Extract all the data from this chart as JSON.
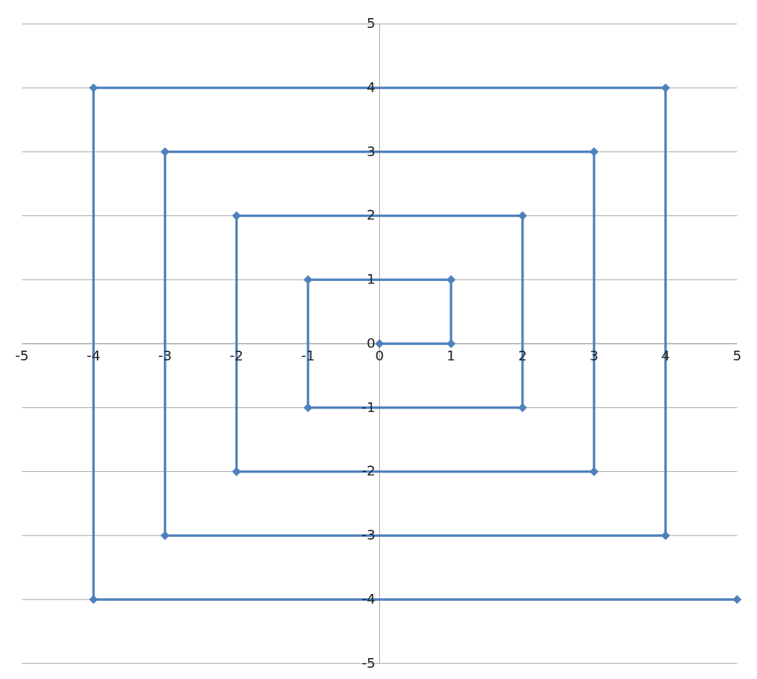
{
  "chart_data": {
    "type": "line",
    "x": [
      0,
      1,
      1,
      -1,
      -1,
      2,
      2,
      -2,
      -2,
      3,
      3,
      -3,
      -3,
      4,
      4,
      -4,
      -4,
      5
    ],
    "series": [
      {
        "color": "#4f81bd",
        "values": [
          0,
          0,
          1,
          1,
          -1,
          -1,
          2,
          2,
          -2,
          -2,
          3,
          3,
          -3,
          -3,
          4,
          4,
          -4,
          -4
        ]
      }
    ],
    "xlim": [
      -5,
      5
    ],
    "ylim": [
      -5,
      5
    ],
    "xticks": [
      -5,
      -4,
      -3,
      -2,
      -1,
      0,
      1,
      2,
      3,
      4,
      5
    ],
    "yticks": [
      -5,
      -4,
      -3,
      -2,
      -1,
      0,
      1,
      2,
      3,
      4,
      5
    ],
    "grid": "y",
    "marker": "diamond",
    "line_style": "solid"
  }
}
